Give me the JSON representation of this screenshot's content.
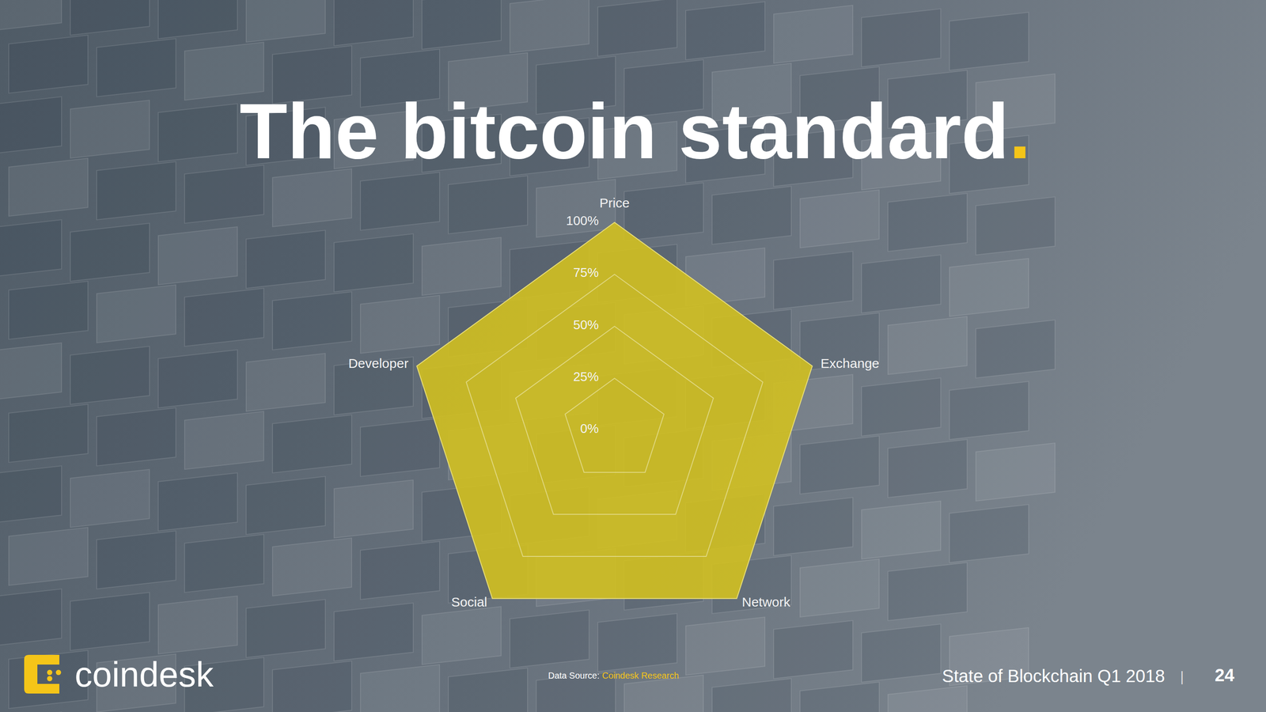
{
  "chart_data": {
    "type": "radar",
    "title": "The bitcoin standard.",
    "categories": [
      "Price",
      "Exchange",
      "Network",
      "Social",
      "Developer"
    ],
    "values": [
      100,
      100,
      100,
      100,
      100
    ],
    "color": "#d2c020",
    "ylim": [
      0,
      100
    ],
    "yticks": [
      {
        "value": 0,
        "label": "0%"
      },
      {
        "value": 25,
        "label": "25%"
      },
      {
        "value": 50,
        "label": "50%"
      },
      {
        "value": 75,
        "label": "75%"
      },
      {
        "value": 100,
        "label": "100%"
      }
    ],
    "grid": true
  },
  "source": {
    "label": "Data Source:",
    "text": "Coindesk Research"
  },
  "footer": {
    "brand": "coindesk",
    "report": "State of Blockchain Q1 2018",
    "separator": "|",
    "page": 24
  }
}
